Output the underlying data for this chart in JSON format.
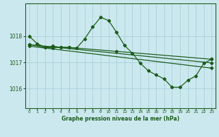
{
  "title": "Graphe pression niveau de la mer (hPa)",
  "bg_color": "#cce8ef",
  "grid_color": "#a8d0d8",
  "line_color": "#1a5c1a",
  "x_ticks": [
    0,
    1,
    2,
    3,
    4,
    5,
    6,
    7,
    8,
    9,
    10,
    11,
    12,
    13,
    14,
    15,
    16,
    17,
    18,
    19,
    20,
    21,
    22,
    23
  ],
  "y_ticks": [
    1016,
    1017,
    1018
  ],
  "ylim": [
    1015.25,
    1019.25
  ],
  "xlim": [
    -0.5,
    23.5
  ],
  "line1_x": [
    0,
    1,
    2,
    3,
    4,
    5,
    6,
    7,
    8,
    9,
    10,
    11,
    12,
    13,
    14,
    15,
    16,
    17,
    18,
    19,
    20,
    21,
    22,
    23
  ],
  "line1_y": [
    1018.0,
    1017.72,
    1017.57,
    1017.62,
    1017.57,
    1017.57,
    1017.55,
    1017.9,
    1018.35,
    1018.72,
    1018.6,
    1018.15,
    1017.65,
    1017.35,
    1016.97,
    1016.68,
    1016.52,
    1016.37,
    1016.05,
    1016.05,
    1016.32,
    1016.48,
    1016.97,
    1017.12
  ],
  "line2_x": [
    0,
    2,
    3,
    4,
    5,
    11,
    23
  ],
  "line2_y": [
    1017.68,
    1017.58,
    1017.55,
    1017.58,
    1017.57,
    1017.42,
    1017.12
  ],
  "line3_x": [
    0,
    23
  ],
  "line3_y": [
    1017.68,
    1016.98
  ],
  "line4_x": [
    0,
    23
  ],
  "line4_y": [
    1017.62,
    1016.78
  ]
}
